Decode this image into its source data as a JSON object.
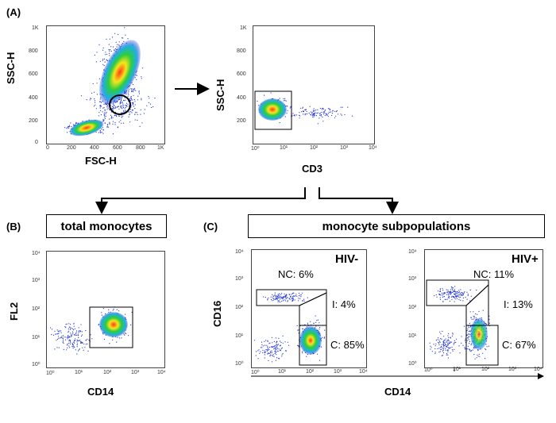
{
  "panel_a": {
    "letter": "(A)",
    "plot1": {
      "ylabel": "SSC-H",
      "xlabel": "FSC-H",
      "yticks": [
        "1K",
        "800",
        "600",
        "400",
        "200",
        "0"
      ],
      "xticks": [
        "0",
        "200",
        "400",
        "600",
        "800",
        "1K"
      ]
    },
    "plot2": {
      "ylabel": "SSC-H",
      "xlabel": "CD3",
      "yticks": [
        "1K",
        "800",
        "600",
        "400",
        "200"
      ],
      "xticks": [
        "10⁰",
        "10¹",
        "10²",
        "10³",
        "10⁴"
      ]
    }
  },
  "panel_b": {
    "letter": "(B)",
    "box_label": "total monocytes",
    "ylabel": "FL2",
    "xlabel": "CD14",
    "yticks": [
      "10⁴",
      "10³",
      "10²",
      "10¹",
      "10⁰"
    ],
    "xticks": [
      "10⁰",
      "10¹",
      "10²",
      "10³",
      "10⁴"
    ]
  },
  "panel_c": {
    "letter": "(C)",
    "box_label": "monocyte subpopulations",
    "ylabel": "CD16",
    "xlabel": "CD14",
    "yticks": [
      "10⁴",
      "10³",
      "10²",
      "10¹",
      "10⁰"
    ],
    "xticks": [
      "10⁰",
      "10¹",
      "10²",
      "10³",
      "10⁴"
    ],
    "hiv_neg": {
      "title": "HIV-",
      "nc": "NC: 6%",
      "i": "I:  4%",
      "c": "C: 85%"
    },
    "hiv_pos": {
      "title": "HIV+",
      "nc": "NC: 11%",
      "i": "I: 13%",
      "c": "C: 67%"
    }
  },
  "colors": {
    "density_low": "#1a2fd6",
    "density_mid": "#2ecc40",
    "density_high": "#ff3a1a",
    "gate": "#000000"
  }
}
